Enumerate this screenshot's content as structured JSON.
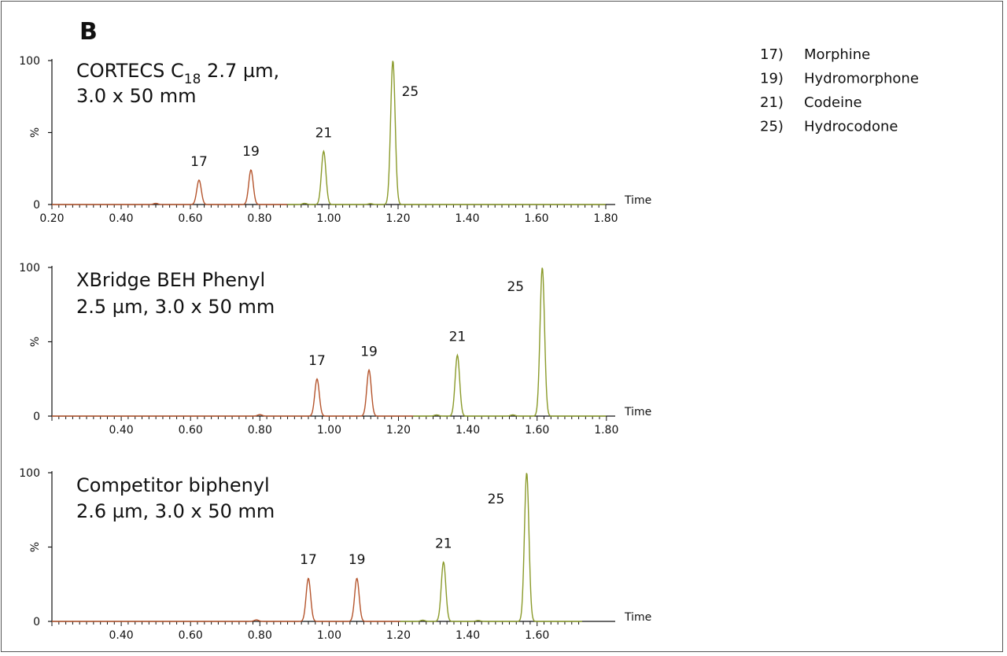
{
  "panel_letter": "B",
  "legend": [
    {
      "id": "17)",
      "name": "Morphine"
    },
    {
      "id": "19)",
      "name": "Hydromorphone"
    },
    {
      "id": "21)",
      "name": "Codeine"
    },
    {
      "id": "25)",
      "name": "Hydrocodone"
    }
  ],
  "colors": {
    "early_peaks": "#b5552d",
    "late_peaks": "#8a9a2a",
    "axis": "#111111"
  },
  "chart_data": [
    {
      "type": "line",
      "column_label": [
        "CORTECS C",
        "18",
        " 2.7 µm,",
        "3.0 x 50 mm"
      ],
      "xlabel": "Time",
      "ylabel": "%",
      "xlim": [
        0.2,
        1.8
      ],
      "ylim": [
        0,
        100
      ],
      "x_ticks": [
        "0.20",
        "0.40",
        "0.60",
        "0.80",
        "1.00",
        "1.20",
        "1.40",
        "1.60",
        "1.80"
      ],
      "y_ticks": [
        "0",
        "100"
      ],
      "peaks": [
        {
          "label": "17",
          "rt": 0.625,
          "height": 17,
          "color": "early"
        },
        {
          "label": "19",
          "rt": 0.775,
          "height": 24,
          "color": "early"
        },
        {
          "label": "21",
          "rt": 0.985,
          "height": 37,
          "color": "late"
        },
        {
          "label": "25",
          "rt": 1.185,
          "height": 100,
          "color": "late"
        }
      ],
      "minor_peaks": [
        [
          0.5,
          0.8
        ],
        [
          0.93,
          0.8
        ],
        [
          1.12,
          0.6
        ]
      ]
    },
    {
      "type": "line",
      "column_label": [
        "XBridge BEH Phenyl",
        "2.5 µm, 3.0 x 50 mm"
      ],
      "xlabel": "Time",
      "ylabel": "%",
      "xlim": [
        0.2,
        1.8
      ],
      "ylim": [
        0,
        100
      ],
      "x_ticks": [
        "0.40",
        "0.60",
        "0.80",
        "1.00",
        "1.20",
        "1.40",
        "1.60",
        "1.80"
      ],
      "y_ticks": [
        "0",
        "100"
      ],
      "peaks": [
        {
          "label": "17",
          "rt": 0.965,
          "height": 25,
          "color": "early"
        },
        {
          "label": "19",
          "rt": 1.115,
          "height": 31,
          "color": "early"
        },
        {
          "label": "21",
          "rt": 1.37,
          "height": 41,
          "color": "late"
        },
        {
          "label": "25",
          "rt": 1.615,
          "height": 100,
          "color": "late"
        }
      ],
      "minor_peaks": [
        [
          0.8,
          1.0
        ],
        [
          1.31,
          0.8
        ],
        [
          1.53,
          0.8
        ]
      ]
    },
    {
      "type": "line",
      "column_label": [
        "Competitor biphenyl",
        "2.6 µm, 3.0 x 50 mm"
      ],
      "xlabel": "Time",
      "ylabel": "%",
      "xlim": [
        0.2,
        1.73
      ],
      "ylim": [
        0,
        100
      ],
      "x_ticks": [
        "0.40",
        "0.60",
        "0.80",
        "1.00",
        "1.20",
        "1.40",
        "1.60"
      ],
      "y_ticks": [
        "0",
        "100"
      ],
      "peaks": [
        {
          "label": "17",
          "rt": 0.94,
          "height": 29,
          "color": "early"
        },
        {
          "label": "19",
          "rt": 1.08,
          "height": 29,
          "color": "early"
        },
        {
          "label": "21",
          "rt": 1.33,
          "height": 40,
          "color": "late"
        },
        {
          "label": "25",
          "rt": 1.57,
          "height": 100,
          "color": "late"
        }
      ],
      "minor_peaks": [
        [
          0.79,
          1.0
        ],
        [
          1.27,
          0.8
        ],
        [
          1.43,
          0.6
        ]
      ]
    }
  ]
}
